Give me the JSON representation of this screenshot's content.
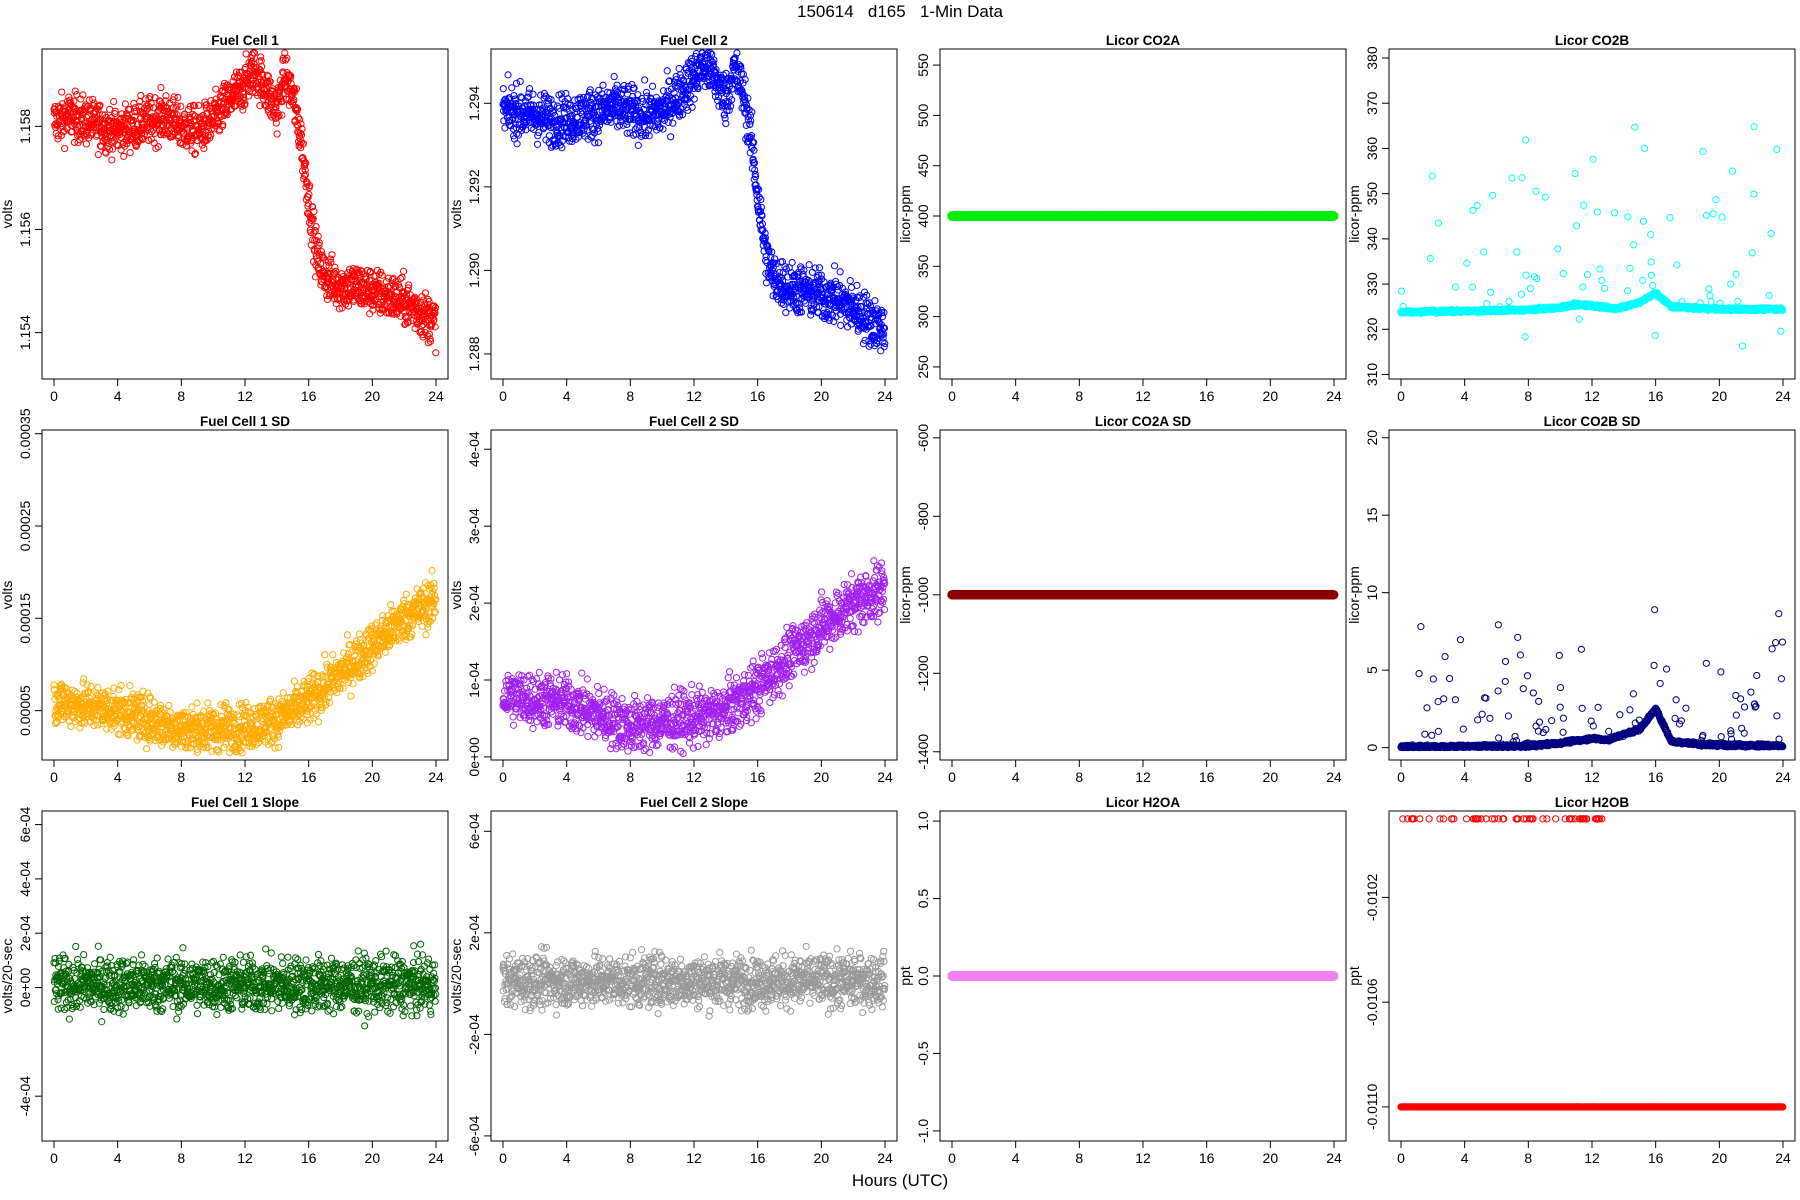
{
  "figure": {
    "title": "150614   d165   1-Min Data",
    "xlabel": "Hours (UTC)"
  },
  "chart_data": [
    {
      "id": "fc1",
      "type": "scatter",
      "title": "Fuel Cell 1",
      "ylabel": "volts",
      "color": "#ff0000",
      "xlim": [
        0,
        24
      ],
      "xticks": [
        0,
        4,
        8,
        12,
        16,
        20,
        24
      ],
      "ylim": [
        1.1531,
        1.1595
      ],
      "yticks": [
        1.154,
        1.156,
        1.158
      ],
      "ytick_labels": [
        "1.154",
        "1.156",
        "1.158"
      ],
      "x": [
        0,
        1,
        2,
        3,
        4,
        5,
        6,
        7,
        8,
        9,
        10,
        11,
        12,
        12.5,
        13,
        14,
        14.5,
        15,
        15.5,
        16,
        16.5,
        17,
        18,
        19,
        20,
        21,
        22,
        23,
        24
      ],
      "y": [
        1.1581,
        1.1582,
        1.1581,
        1.158,
        1.1579,
        1.158,
        1.1581,
        1.1582,
        1.158,
        1.1579,
        1.1581,
        1.1585,
        1.1588,
        1.1591,
        1.1589,
        1.1583,
        1.159,
        1.1586,
        1.1578,
        1.1566,
        1.1555,
        1.1551,
        1.1549,
        1.1549,
        1.1548,
        1.1547,
        1.1546,
        1.1544,
        1.1542
      ],
      "n_points": 1440,
      "noise": 0.00045
    },
    {
      "id": "fc2",
      "type": "scatter",
      "title": "Fuel Cell 2",
      "ylabel": "volts",
      "color": "#0000ff",
      "xlim": [
        0,
        24
      ],
      "xticks": [
        0,
        4,
        8,
        12,
        16,
        20,
        24
      ],
      "ylim": [
        1.2874,
        1.2953
      ],
      "yticks": [
        1.288,
        1.29,
        1.292,
        1.294
      ],
      "ytick_labels": [
        "1.288",
        "1.290",
        "1.292",
        "1.294"
      ],
      "x": [
        0,
        1,
        2,
        3,
        4,
        5,
        6,
        7,
        8,
        9,
        10,
        11,
        12,
        12.5,
        13,
        14,
        14.5,
        15,
        15.5,
        16,
        16.5,
        17,
        18,
        19,
        20,
        21,
        22,
        23,
        24
      ],
      "y": [
        1.2938,
        1.2938,
        1.2937,
        1.2936,
        1.2936,
        1.2937,
        1.2938,
        1.2939,
        1.2938,
        1.2937,
        1.2938,
        1.2942,
        1.2946,
        1.2949,
        1.2948,
        1.2941,
        1.2948,
        1.2944,
        1.2934,
        1.2918,
        1.2904,
        1.2898,
        1.2896,
        1.2895,
        1.2894,
        1.2893,
        1.2891,
        1.2888,
        1.2886
      ],
      "n_points": 1440,
      "noise": 0.0006
    },
    {
      "id": "co2a",
      "type": "scatter",
      "title": "Licor CO2A",
      "ylabel": "licor-ppm",
      "color": "#00ee00",
      "xlim": [
        0,
        24
      ],
      "xticks": [
        0,
        4,
        8,
        12,
        16,
        20,
        24
      ],
      "ylim": [
        238,
        566
      ],
      "yticks": [
        250,
        300,
        350,
        400,
        450,
        500,
        550
      ],
      "ytick_labels": [
        "250",
        "300",
        "350",
        "400",
        "450",
        "500",
        "550"
      ],
      "x": [
        0,
        24
      ],
      "y": [
        400,
        400
      ],
      "n_points": 1440,
      "noise": 0
    },
    {
      "id": "co2b",
      "type": "scatter",
      "title": "Licor CO2B",
      "ylabel": "licor-ppm",
      "color": "#00ffff",
      "xlim": [
        0,
        24
      ],
      "xticks": [
        0,
        4,
        8,
        12,
        16,
        20,
        24
      ],
      "ylim": [
        309,
        382
      ],
      "yticks": [
        310,
        320,
        330,
        340,
        350,
        360,
        370,
        380
      ],
      "ytick_labels": [
        "310",
        "320",
        "330",
        "340",
        "350",
        "360",
        "370",
        "380"
      ],
      "x": [
        0,
        3.5,
        8,
        10,
        11,
        12.5,
        13.5,
        15,
        16,
        17,
        19,
        20,
        24
      ],
      "y": [
        323.8,
        324.0,
        324.3,
        324.8,
        325.5,
        325.0,
        324.5,
        326.0,
        328.0,
        325.0,
        324.6,
        324.4,
        324.5
      ],
      "n_points": 1440,
      "noise": 0.3
    },
    {
      "id": "fc1sd",
      "type": "scatter",
      "title": "Fuel Cell 1 SD",
      "ylabel": "volts",
      "color": "#ffaa00",
      "xlim": [
        0,
        24
      ],
      "xticks": [
        0,
        4,
        8,
        12,
        16,
        20,
        24
      ],
      "ylim": [
        -3.5e-06,
        0.000354
      ],
      "yticks": [
        5e-05,
        0.00015,
        0.00025,
        0.00035
      ],
      "ytick_labels": [
        "0.00005",
        "0.00015",
        "0.00025",
        "0.00035"
      ],
      "x": [
        0,
        2,
        4,
        6,
        8,
        10,
        12,
        14,
        16,
        18,
        20,
        22,
        24
      ],
      "y": [
        6e-05,
        5.5e-05,
        5e-05,
        4e-05,
        3e-05,
        3e-05,
        3.2e-05,
        4e-05,
        6e-05,
        9e-05,
        0.00012,
        0.00015,
        0.00017
      ],
      "n_points": 1440,
      "noise": 2.5e-05
    },
    {
      "id": "fc2sd",
      "type": "scatter",
      "title": "Fuel Cell 2 SD",
      "ylabel": "volts",
      "color": "#a020f0",
      "xlim": [
        0,
        24
      ],
      "xticks": [
        0,
        4,
        8,
        12,
        16,
        20,
        24
      ],
      "ylim": [
        -4e-06,
        0.000425
      ],
      "yticks": [
        0,
        0.0001,
        0.0002,
        0.0003,
        0.0004
      ],
      "ytick_labels": [
        "0e+00",
        "1e-04",
        "2e-04",
        "3e-04",
        "4e-04"
      ],
      "x": [
        0,
        2,
        4,
        6,
        8,
        10,
        12,
        14,
        16,
        18,
        20,
        22,
        24
      ],
      "y": [
        8e-05,
        7.5e-05,
        7e-05,
        5.5e-05,
        4e-05,
        4.5e-05,
        5e-05,
        6e-05,
        9e-05,
        0.00013,
        0.00017,
        0.0002,
        0.00022
      ],
      "n_points": 1440,
      "noise": 3.5e-05
    },
    {
      "id": "co2asd",
      "type": "scatter",
      "title": "Licor CO2A SD",
      "ylabel": "licor-ppm",
      "color": "#8b0000",
      "xlim": [
        0,
        24
      ],
      "xticks": [
        0,
        4,
        8,
        12,
        16,
        20,
        24
      ],
      "ylim": [
        -1421,
        -580
      ],
      "yticks": [
        -1400,
        -1200,
        -1000,
        -800,
        -600
      ],
      "ytick_labels": [
        "-1400",
        "-1200",
        "-1000",
        "-800",
        "-600"
      ],
      "x": [
        0,
        24
      ],
      "y": [
        -1000,
        -1000
      ],
      "n_points": 1440,
      "noise": 0
    },
    {
      "id": "co2bsd",
      "type": "scatter",
      "title": "Licor CO2B SD",
      "ylabel": "licor-ppm",
      "color": "#000080",
      "xlim": [
        0,
        24
      ],
      "xticks": [
        0,
        4,
        8,
        12,
        16,
        20,
        24
      ],
      "ylim": [
        -0.8,
        20.5
      ],
      "yticks": [
        0,
        5,
        10,
        15,
        20
      ],
      "ytick_labels": [
        "0",
        "5",
        "10",
        "15",
        "20"
      ],
      "x": [
        0,
        8,
        10,
        12,
        13,
        15,
        16,
        17,
        19,
        24
      ],
      "y": [
        0.05,
        0.1,
        0.3,
        0.6,
        0.5,
        1.2,
        2.5,
        0.4,
        0.2,
        0.1
      ],
      "n_points": 1440,
      "noise": 0.1
    },
    {
      "id": "fc1slope",
      "type": "scatter",
      "title": "Fuel Cell 1 Slope",
      "ylabel": "volts/20-sec",
      "color": "#006400",
      "xlim": [
        0,
        24
      ],
      "xticks": [
        0,
        4,
        8,
        12,
        16,
        20,
        24
      ],
      "ylim": [
        -0.000565,
        0.00065
      ],
      "yticks": [
        -0.0004,
        0,
        0.0002,
        0.0004,
        0.0006
      ],
      "ytick_labels": [
        "-4e-04",
        "0e+00",
        "2e-04",
        "4e-04",
        "6e-04"
      ],
      "x": [
        0,
        24
      ],
      "y": [
        1e-05,
        1e-05
      ],
      "n_points": 1440,
      "noise": 0.0001
    },
    {
      "id": "fc2slope",
      "type": "scatter",
      "title": "Fuel Cell 2 Slope",
      "ylabel": "volts/20-sec",
      "color": "#999999",
      "xlim": [
        0,
        24
      ],
      "xticks": [
        0,
        4,
        8,
        12,
        16,
        20,
        24
      ],
      "ylim": [
        -0.00062,
        0.00068
      ],
      "yticks": [
        -0.0006,
        -0.0002,
        0.0002,
        0.0006
      ],
      "ytick_labels": [
        "-6e-04",
        "-2e-04",
        "2e-04",
        "6e-04"
      ],
      "x": [
        0,
        24
      ],
      "y": [
        1e-05,
        1e-05
      ],
      "n_points": 1440,
      "noise": 0.0001
    },
    {
      "id": "h2oa",
      "type": "scatter",
      "title": "Licor H2OA",
      "ylabel": "ppt",
      "color": "#ee82ee",
      "xlim": [
        0,
        24
      ],
      "xticks": [
        0,
        4,
        8,
        12,
        16,
        20,
        24
      ],
      "ylim": [
        -1.065,
        1.065
      ],
      "yticks": [
        -1,
        -0.5,
        0,
        0.5,
        1
      ],
      "ytick_labels": [
        "-1.0",
        "-0.5",
        "0.0",
        "0.5",
        "1.0"
      ],
      "x": [
        0,
        24
      ],
      "y": [
        0,
        0
      ],
      "n_points": 1440,
      "noise": 0
    },
    {
      "id": "h2ob",
      "type": "scatter",
      "title": "Licor H2OB",
      "ylabel": "ppt",
      "color": "#ff0000",
      "xlim": [
        0,
        24
      ],
      "xticks": [
        0,
        4,
        8,
        12,
        16,
        20,
        24
      ],
      "ylim": [
        -0.01113,
        -0.00987
      ],
      "yticks": [
        -0.011,
        -0.0106,
        -0.0102
      ],
      "ytick_labels": [
        "-0.0110",
        "-0.0106",
        "-0.0102"
      ],
      "levels": [
        -0.0099,
        -0.011
      ],
      "n_points": 1440
    }
  ]
}
